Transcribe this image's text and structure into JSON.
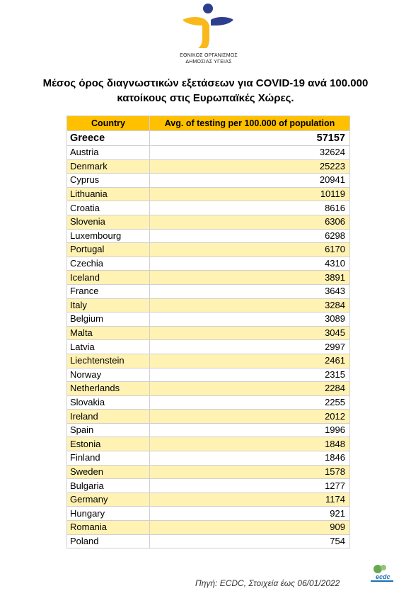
{
  "org": {
    "line1": "ΕΘΝΙΚΟΣ ΟΡΓΑΝΙΣΜΟΣ",
    "line2": "ΔΗΜΟΣΙΑΣ ΥΓΕΙΑΣ"
  },
  "title": {
    "line1": "Μέσος όρος διαγνωστικών εξετάσεων για COVID-19 ανά 100.000",
    "line2": "κατοίκους στις Ευρωπαϊκές Χώρες."
  },
  "table": {
    "headers": [
      "Country",
      "Avg. of testing per 100.000 of population"
    ],
    "rows": [
      {
        "country": "Greece",
        "value": "57157"
      },
      {
        "country": "Austria",
        "value": "32624"
      },
      {
        "country": "Denmark",
        "value": "25223"
      },
      {
        "country": "Cyprus",
        "value": "20941"
      },
      {
        "country": "Lithuania",
        "value": "10119"
      },
      {
        "country": "Croatia",
        "value": "8616"
      },
      {
        "country": "Slovenia",
        "value": "6306"
      },
      {
        "country": "Luxembourg",
        "value": "6298"
      },
      {
        "country": "Portugal",
        "value": "6170"
      },
      {
        "country": "Czechia",
        "value": "4310"
      },
      {
        "country": "Iceland",
        "value": "3891"
      },
      {
        "country": "France",
        "value": "3643"
      },
      {
        "country": "Italy",
        "value": "3284"
      },
      {
        "country": "Belgium",
        "value": "3089"
      },
      {
        "country": "Malta",
        "value": "3045"
      },
      {
        "country": "Latvia",
        "value": "2997"
      },
      {
        "country": "Liechtenstein",
        "value": "2461"
      },
      {
        "country": "Norway",
        "value": "2315"
      },
      {
        "country": "Netherlands",
        "value": "2284"
      },
      {
        "country": "Slovakia",
        "value": "2255"
      },
      {
        "country": "Ireland",
        "value": "2012"
      },
      {
        "country": "Spain",
        "value": "1996"
      },
      {
        "country": "Estonia",
        "value": "1848"
      },
      {
        "country": "Finland",
        "value": "1846"
      },
      {
        "country": "Sweden",
        "value": "1578"
      },
      {
        "country": "Bulgaria",
        "value": "1277"
      },
      {
        "country": "Germany",
        "value": "1174"
      },
      {
        "country": "Hungary",
        "value": "921"
      },
      {
        "country": "Romania",
        "value": "909"
      },
      {
        "country": "Poland",
        "value": "754"
      }
    ]
  },
  "source": "Πηγή: ECDC, Στοιχεία έως 06/01/2022",
  "ecdc_logo_text": "ecdc",
  "colors": {
    "header_bg": "#ffc000",
    "band_bg": "#fff2b3",
    "logo_yellow": "#f9b81b",
    "logo_blue": "#2d3e8f"
  }
}
